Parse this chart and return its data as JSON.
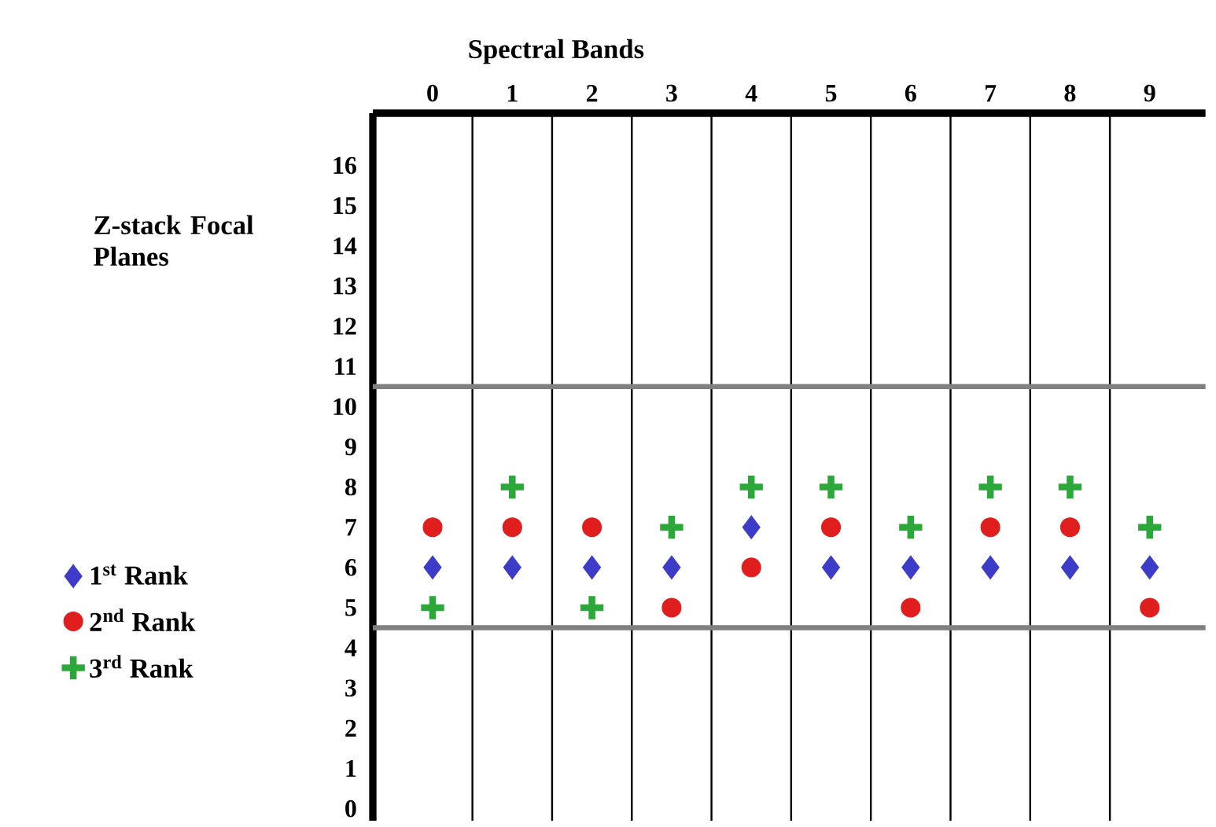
{
  "chart_data": {
    "type": "scatter",
    "xlabel": "Spectral Bands",
    "ylabel": "Z-stack Focal Planes",
    "categories": [
      "0",
      "1",
      "2",
      "3",
      "4",
      "5",
      "6",
      "7",
      "8",
      "9"
    ],
    "series": [
      {
        "name": "1$^{st}$ Rank",
        "color": "#3c3cc8",
        "marker": "diamond",
        "values": [
          6,
          6,
          6,
          6,
          7,
          6,
          6,
          6,
          6,
          6
        ]
      },
      {
        "name": "2$^{nd}$ Rank",
        "color": "#e01e1e",
        "marker": "circle",
        "values": [
          7,
          7,
          7,
          5,
          6,
          7,
          5,
          7,
          7,
          5
        ]
      },
      {
        "name": "3$^{rd}$ Rank",
        "color": "#2ca83a",
        "marker": "cross",
        "values": [
          5,
          8,
          5,
          7,
          8,
          8,
          7,
          8,
          8,
          7
        ]
      }
    ],
    "ylim": [
      -0.3,
      17.3
    ],
    "yticks": [
      0,
      1,
      2,
      3,
      4,
      5,
      6,
      7,
      8,
      9,
      10,
      11,
      12,
      13,
      14,
      15,
      16
    ],
    "ref_lines": [
      {
        "axis": "y",
        "value": 10.5,
        "color": "#808080"
      },
      {
        "axis": "y",
        "value": 4.5,
        "color": "#808080"
      }
    ],
    "grid": "x",
    "legend": "left"
  }
}
